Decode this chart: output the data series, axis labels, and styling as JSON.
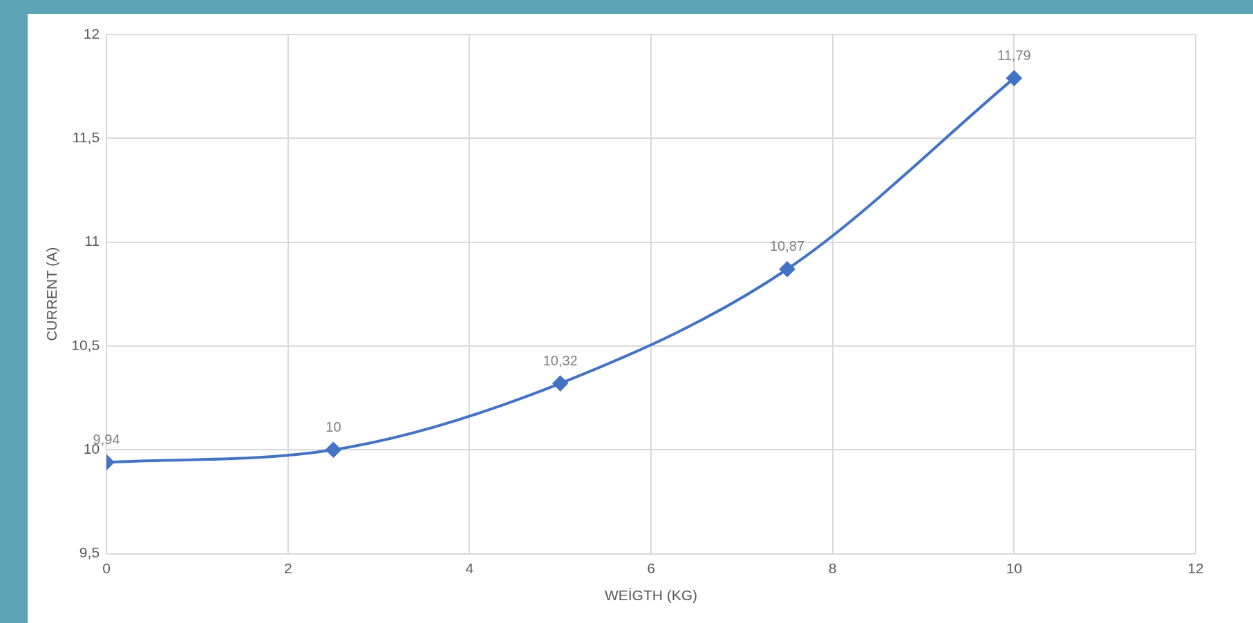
{
  "chart_data": {
    "type": "line",
    "xlabel": "WEİGTH (KG)",
    "ylabel": "CURRENT (A)",
    "x": [
      0,
      2.5,
      5,
      7.5,
      10
    ],
    "series": [
      {
        "color": "#4472c4",
        "values": [
          9.94,
          10,
          10.32,
          10.87,
          11.79
        ],
        "value_labels": [
          "9,94",
          "10",
          "10,32",
          "10,87",
          "11,79"
        ]
      }
    ],
    "xlim": [
      0,
      12
    ],
    "xticks": [
      0,
      2,
      4,
      6,
      8,
      10,
      12
    ],
    "ylim": [
      9.5,
      12
    ],
    "yticks": [
      {
        "value": 9.5,
        "label": "9,5"
      },
      10,
      {
        "value": 10.5,
        "label": "10,5"
      },
      11,
      {
        "value": 11.5,
        "label": "11,5"
      },
      12
    ],
    "grid": true,
    "legend": false,
    "marker": "diamond",
    "line_style": "solid"
  }
}
